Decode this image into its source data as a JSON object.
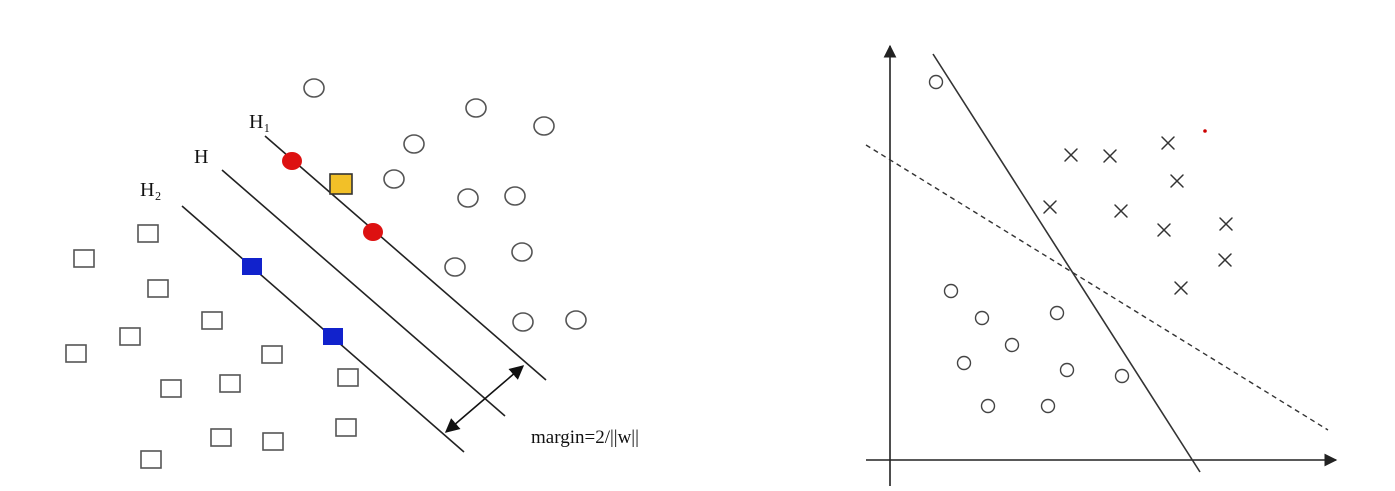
{
  "left_diagram": {
    "label_h1": "H₁",
    "label_h": "H",
    "label_h2": "H₂",
    "margin_label": "margin=2/||w||",
    "colors": {
      "support_circle": "#dd1111",
      "support_square_blue": "#1122cc",
      "support_square_yellow": "#f2c028",
      "outline": "#555555"
    }
  },
  "right_diagram": {
    "colors": {
      "stroke": "#333333",
      "stray_dot": "#cc0000"
    }
  }
}
